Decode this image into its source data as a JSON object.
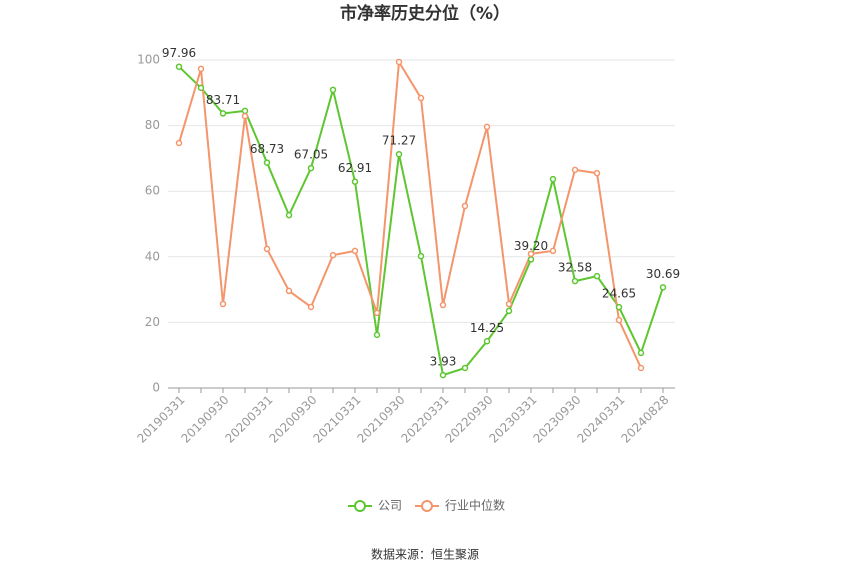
{
  "chart_data": {
    "type": "line",
    "title": "市净率历史分位（%）",
    "categories": [
      "20190331",
      null,
      "20190930",
      null,
      "20200331",
      null,
      "20200930",
      null,
      "20210331",
      null,
      "20210930",
      null,
      "20220331",
      null,
      "20220930",
      null,
      "20230331",
      null,
      "20230930",
      null,
      "20240331",
      null,
      "20240828"
    ],
    "series": [
      {
        "name": "公司",
        "color": "#5ec630",
        "values": [
          97.96,
          91.5,
          83.71,
          84.5,
          68.73,
          52.7,
          67.05,
          90.9,
          62.91,
          16.2,
          71.27,
          40.2,
          3.93,
          6.1,
          14.25,
          23.5,
          39.2,
          63.7,
          32.58,
          34.1,
          24.65,
          10.7,
          30.69
        ],
        "value_labels": [
          "97.96",
          null,
          "83.71",
          null,
          "68.73",
          null,
          "67.05",
          null,
          "62.91",
          null,
          "71.27",
          null,
          "3.93",
          null,
          "14.25",
          null,
          "39.20",
          null,
          "32.58",
          null,
          "24.65",
          null,
          "30.69"
        ]
      },
      {
        "name": "行业中位数",
        "color": "#f4956b",
        "values": [
          74.7,
          97.3,
          25.6,
          82.9,
          42.4,
          29.6,
          24.7,
          40.5,
          41.8,
          22.9,
          99.4,
          88.4,
          25.3,
          55.5,
          79.6,
          25.6,
          40.9,
          41.8,
          66.5,
          65.5,
          20.7,
          6.1,
          null
        ]
      }
    ],
    "ylim": [
      0,
      100
    ],
    "yticks": [
      0,
      20,
      40,
      60,
      80,
      100
    ],
    "grid": true,
    "legend": "bottom",
    "source": "数据来源：恒生聚源"
  }
}
